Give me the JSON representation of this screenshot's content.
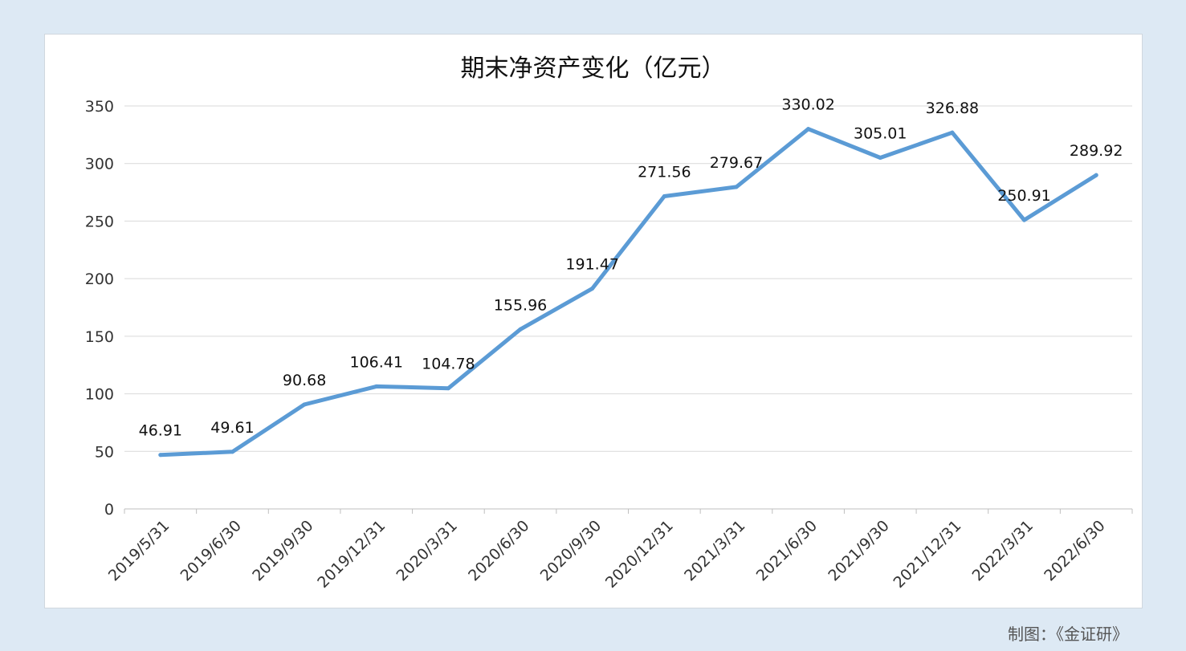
{
  "chart_data": {
    "type": "line",
    "title": "期末净资产变化（亿元）",
    "categories": [
      "2019/5/31",
      "2019/6/30",
      "2019/9/30",
      "2019/12/31",
      "2020/3/31",
      "2020/6/30",
      "2020/9/30",
      "2020/12/31",
      "2021/3/31",
      "2021/6/30",
      "2021/9/30",
      "2021/12/31",
      "2022/3/31",
      "2022/6/30"
    ],
    "series": [
      {
        "values": [
          46.91,
          49.61,
          90.68,
          106.41,
          104.78,
          155.96,
          191.47,
          271.56,
          279.67,
          330.02,
          305.01,
          326.88,
          250.91,
          289.92
        ]
      }
    ],
    "data_labels": [
      "46.91",
      "49.61",
      "90.68",
      "106.41",
      "104.78",
      "155.96",
      "191.47",
      "271.56",
      "279.67",
      "330.02",
      "305.01",
      "326.88",
      "250.91",
      "289.92"
    ],
    "y_ticks": [
      0,
      50,
      100,
      150,
      200,
      250,
      300,
      350
    ],
    "ylim": [
      0,
      350
    ],
    "grid": true,
    "legend": "none",
    "line_color": "#5b9bd5",
    "gridline_color": "#d9d9d9"
  },
  "footer": {
    "credit": "制图：《金证研》"
  }
}
